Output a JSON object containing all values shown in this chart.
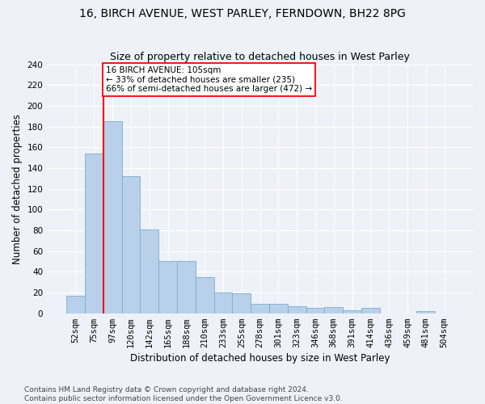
{
  "title": "16, BIRCH AVENUE, WEST PARLEY, FERNDOWN, BH22 8PG",
  "subtitle": "Size of property relative to detached houses in West Parley",
  "xlabel": "Distribution of detached houses by size in West Parley",
  "ylabel": "Number of detached properties",
  "bar_color": "#b8d0ea",
  "bar_edge_color": "#7aadd4",
  "categories": [
    "52sqm",
    "75sqm",
    "97sqm",
    "120sqm",
    "142sqm",
    "165sqm",
    "188sqm",
    "210sqm",
    "233sqm",
    "255sqm",
    "278sqm",
    "301sqm",
    "323sqm",
    "346sqm",
    "368sqm",
    "391sqm",
    "414sqm",
    "436sqm",
    "459sqm",
    "481sqm",
    "504sqm"
  ],
  "values": [
    17,
    154,
    185,
    132,
    81,
    50,
    50,
    35,
    20,
    19,
    9,
    9,
    7,
    5,
    6,
    3,
    5,
    0,
    0,
    2,
    0
  ],
  "ylim": [
    0,
    240
  ],
  "yticks": [
    0,
    20,
    40,
    60,
    80,
    100,
    120,
    140,
    160,
    180,
    200,
    220,
    240
  ],
  "vline_index": 2,
  "property_label": "16 BIRCH AVENUE: 105sqm",
  "pct_smaller_label": "← 33% of detached houses are smaller (235)",
  "pct_larger_label": "66% of semi-detached houses are larger (472) →",
  "footer1": "Contains HM Land Registry data © Crown copyright and database right 2024.",
  "footer2": "Contains public sector information licensed under the Open Government Licence v3.0.",
  "bg_color": "#eef2f8",
  "grid_color": "#ffffff",
  "title_fontsize": 10,
  "subtitle_fontsize": 9,
  "axis_label_fontsize": 8.5,
  "tick_fontsize": 7.5,
  "footer_fontsize": 6.5
}
